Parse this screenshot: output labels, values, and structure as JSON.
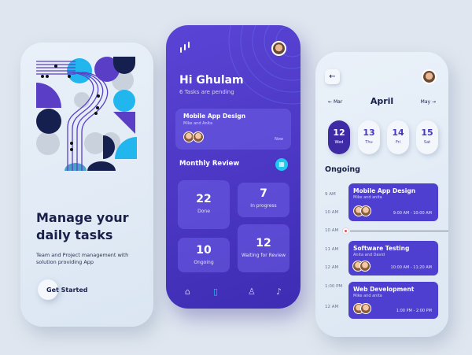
{
  "onboarding": {
    "title_line1": "Manage your",
    "title_line2": "daily tasks",
    "subtitle": "Team and Project management with solution providing App",
    "cta": "Get Started"
  },
  "dashboard": {
    "greeting": "Hi Ghulam",
    "pending": "6 Tasks are pending",
    "featured": {
      "title": "Mobile App Design",
      "members": "Mike and Anita",
      "time": "Now"
    },
    "review_title": "Monthly Review",
    "stats": [
      {
        "value": "22",
        "label": "Done"
      },
      {
        "value": "7",
        "label": "In progress"
      },
      {
        "value": "10",
        "label": "Ongoing"
      },
      {
        "value": "12",
        "label": "Waiting for Review"
      }
    ],
    "nav": [
      "home-icon",
      "document-icon",
      "profile-icon",
      "bell-icon"
    ]
  },
  "schedule": {
    "prev": "Mar",
    "month": "April",
    "next": "May",
    "days": [
      {
        "d": "12",
        "w": "Wed",
        "active": true
      },
      {
        "d": "13",
        "w": "Thu"
      },
      {
        "d": "14",
        "w": "Fri"
      },
      {
        "d": "15",
        "w": "Sat"
      }
    ],
    "section": "Ongoing",
    "times": [
      "9 AM",
      "10 AM",
      "10 AM",
      "11 AM",
      "12 AM",
      "1:00 PM",
      "12 AM"
    ],
    "events": [
      {
        "title": "Mobile App Design",
        "members": "Mike and anita",
        "range": "9:00 AM - 10:00 AM"
      },
      {
        "title": "Software Testing",
        "members": "Anita and David",
        "range": "10:00 AM - 11:20 AM"
      },
      {
        "title": "Web Development",
        "members": "Mike and anita",
        "range": "1:00 PM - 2:00 PM"
      }
    ]
  },
  "colors": {
    "primary": "#4a35c4",
    "accent": "#1ec8f0",
    "navy": "#16204f",
    "now_line": "#e0535f"
  }
}
